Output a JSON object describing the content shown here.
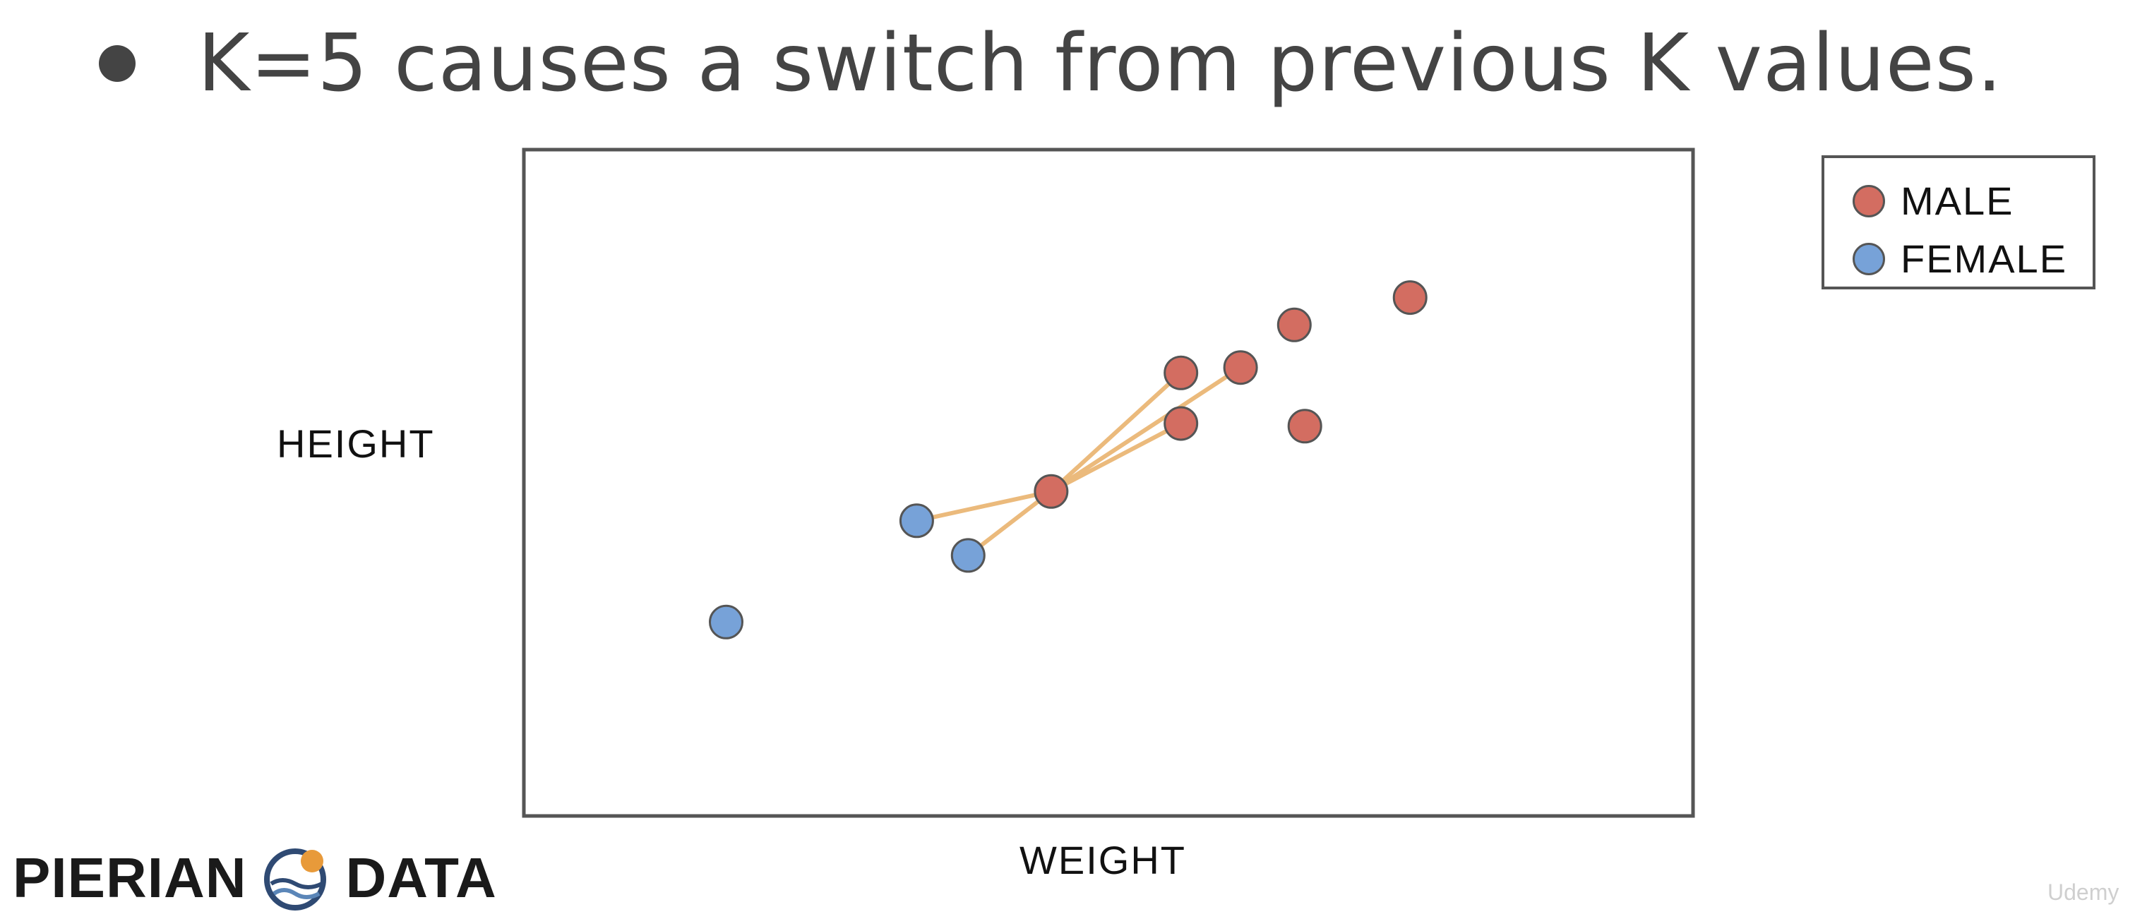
{
  "slide": {
    "bullet": "K=5 causes a switch from previous K values."
  },
  "colors": {
    "male": "#d36d61",
    "female": "#77a2d8",
    "neighbor_line": "#ebba7c",
    "frame": "#555555"
  },
  "chart_data": {
    "type": "scatter",
    "title": "",
    "xlabel": "WEIGHT",
    "ylabel": "HEIGHT",
    "xlim": [
      0,
      100
    ],
    "ylim": [
      0,
      100
    ],
    "grid": false,
    "legend_position": "right",
    "series": [
      {
        "name": "MALE",
        "points": [
          {
            "x": 75.8,
            "y": 77.8
          },
          {
            "x": 61.3,
            "y": 67.3
          },
          {
            "x": 65.9,
            "y": 73.7
          },
          {
            "x": 66.8,
            "y": 58.5
          },
          {
            "x": 56.2,
            "y": 66.5
          },
          {
            "x": 56.2,
            "y": 58.9
          },
          {
            "x": 45.1,
            "y": 48.7
          }
        ]
      },
      {
        "name": "FEMALE",
        "points": [
          {
            "x": 33.6,
            "y": 44.3
          },
          {
            "x": 38.0,
            "y": 39.1
          },
          {
            "x": 17.3,
            "y": 29.1
          }
        ]
      }
    ],
    "query_point": {
      "x": 45.1,
      "y": 48.7
    },
    "neighbors": [
      {
        "x": 56.2,
        "y": 66.5
      },
      {
        "x": 56.2,
        "y": 58.9
      },
      {
        "x": 61.3,
        "y": 67.3
      },
      {
        "x": 33.6,
        "y": 44.3
      },
      {
        "x": 38.0,
        "y": 39.1
      }
    ]
  },
  "logo": {
    "left_word": "PIERIAN",
    "right_word": "DATA",
    "mark_icon": "pierian-data-wave-icon"
  },
  "watermark": "Udemy"
}
